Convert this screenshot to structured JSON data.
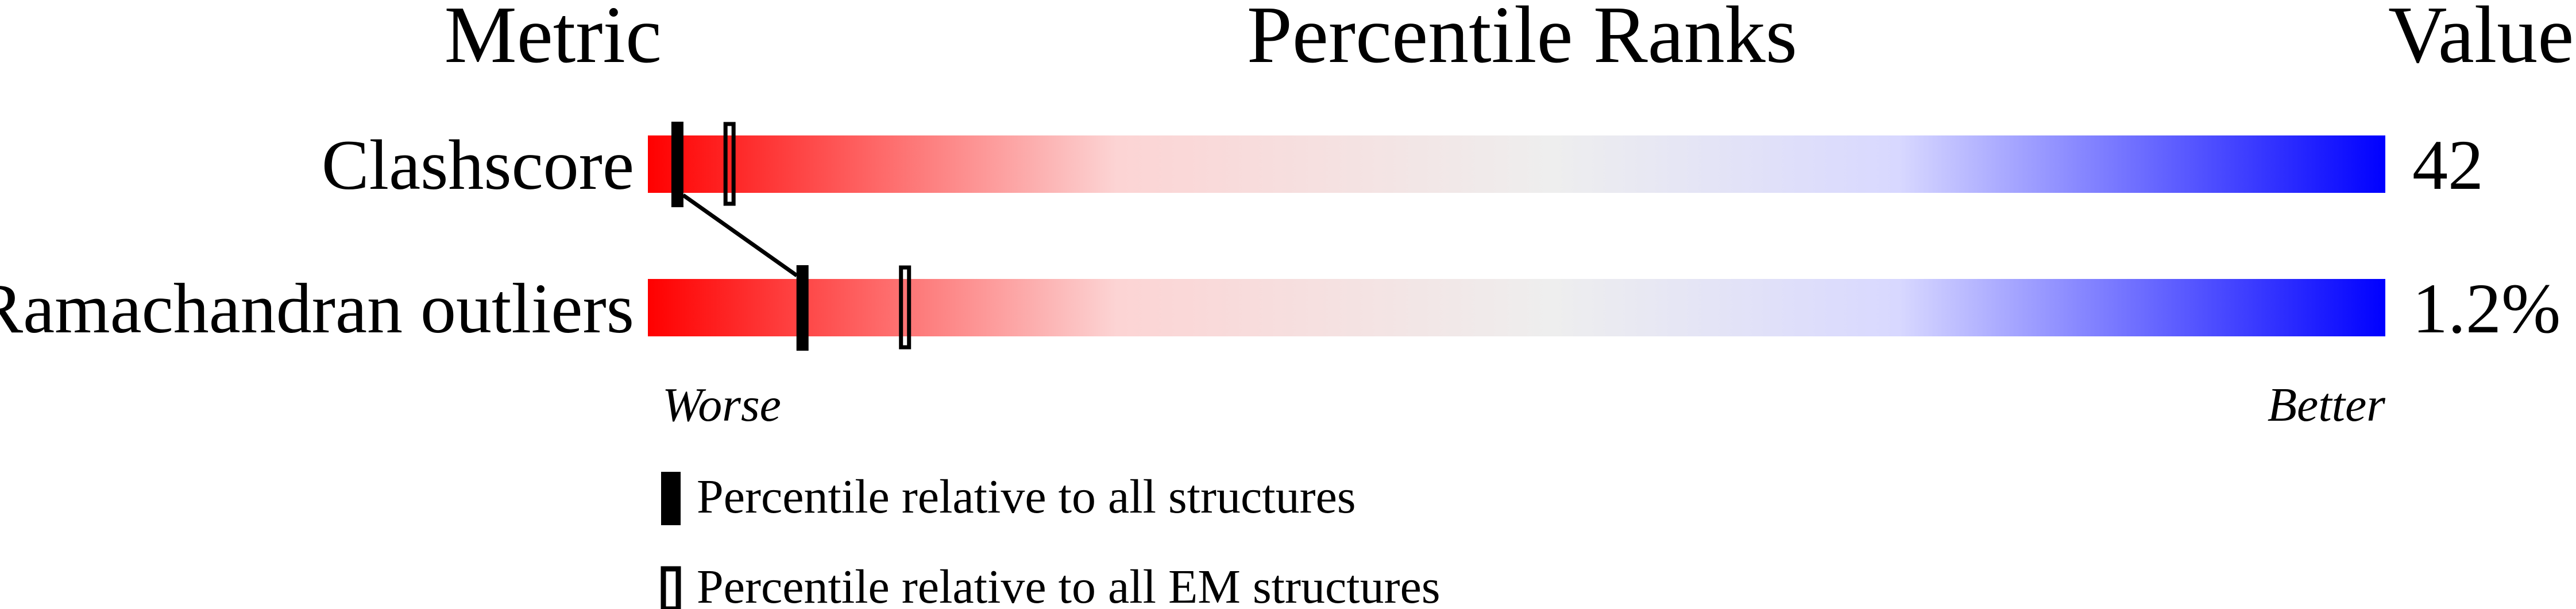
{
  "chart_data": {
    "type": "percentile-slider",
    "headers": {
      "metric": "Metric",
      "ranks": "Percentile Ranks",
      "value": "Value"
    },
    "axis": {
      "min": 0,
      "max": 100,
      "left_label": "Worse",
      "right_label": "Better"
    },
    "gradient_colors": [
      "#ff0000",
      "#fcd4d4",
      "#eeeeee",
      "#d8d8ff",
      "#0000ff"
    ],
    "metrics": [
      {
        "name": "Clashscore",
        "value": "42",
        "percentile_all": 1.7,
        "percentile_em": 4.7
      },
      {
        "name": "Ramachandran outliers",
        "value": "1.2%",
        "percentile_all": 8.9,
        "percentile_em": 14.8
      }
    ],
    "legend": [
      {
        "marker": "filled",
        "label": "Percentile relative to all structures"
      },
      {
        "marker": "open",
        "label": "Percentile relative to all EM structures"
      }
    ]
  }
}
